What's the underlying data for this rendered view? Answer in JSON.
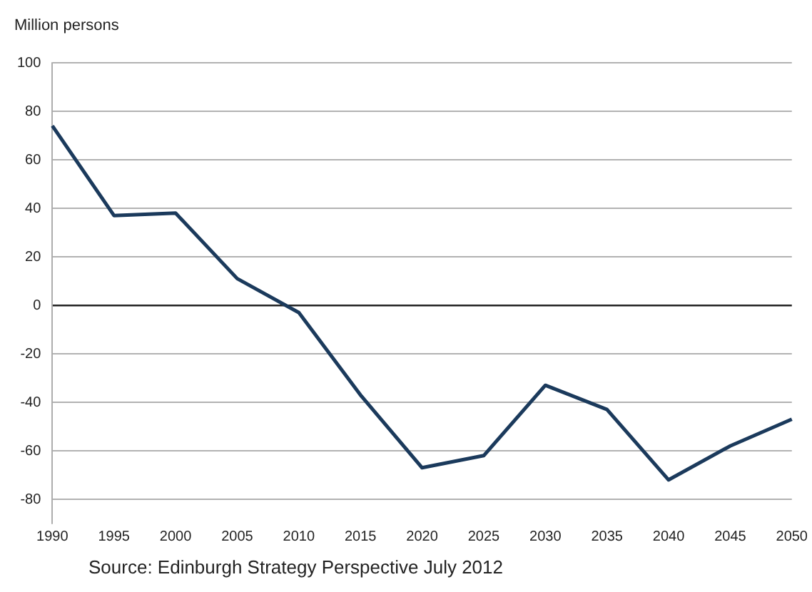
{
  "chart_data": {
    "type": "line",
    "ylabel": "Million persons",
    "categories": [
      "1990",
      "1995",
      "2000",
      "2005",
      "2010",
      "2015",
      "2020",
      "2025",
      "2030",
      "2035",
      "2040",
      "2045",
      "2050"
    ],
    "series": [
      {
        "color": "#1b3a5c",
        "values": [
          74,
          37,
          38,
          11,
          -3,
          -37,
          -67,
          -62,
          -33,
          -43,
          -72,
          -58,
          -47
        ]
      }
    ],
    "ylim": [
      -90,
      100
    ],
    "yticks": [
      -80,
      -60,
      -40,
      -20,
      0,
      20,
      40,
      60,
      80,
      100
    ],
    "grid": "y",
    "legend": false,
    "marker": "none",
    "line_style": "solid",
    "annotations": [
      "Source: Edinburgh Strategy Perspective July 2012"
    ]
  }
}
